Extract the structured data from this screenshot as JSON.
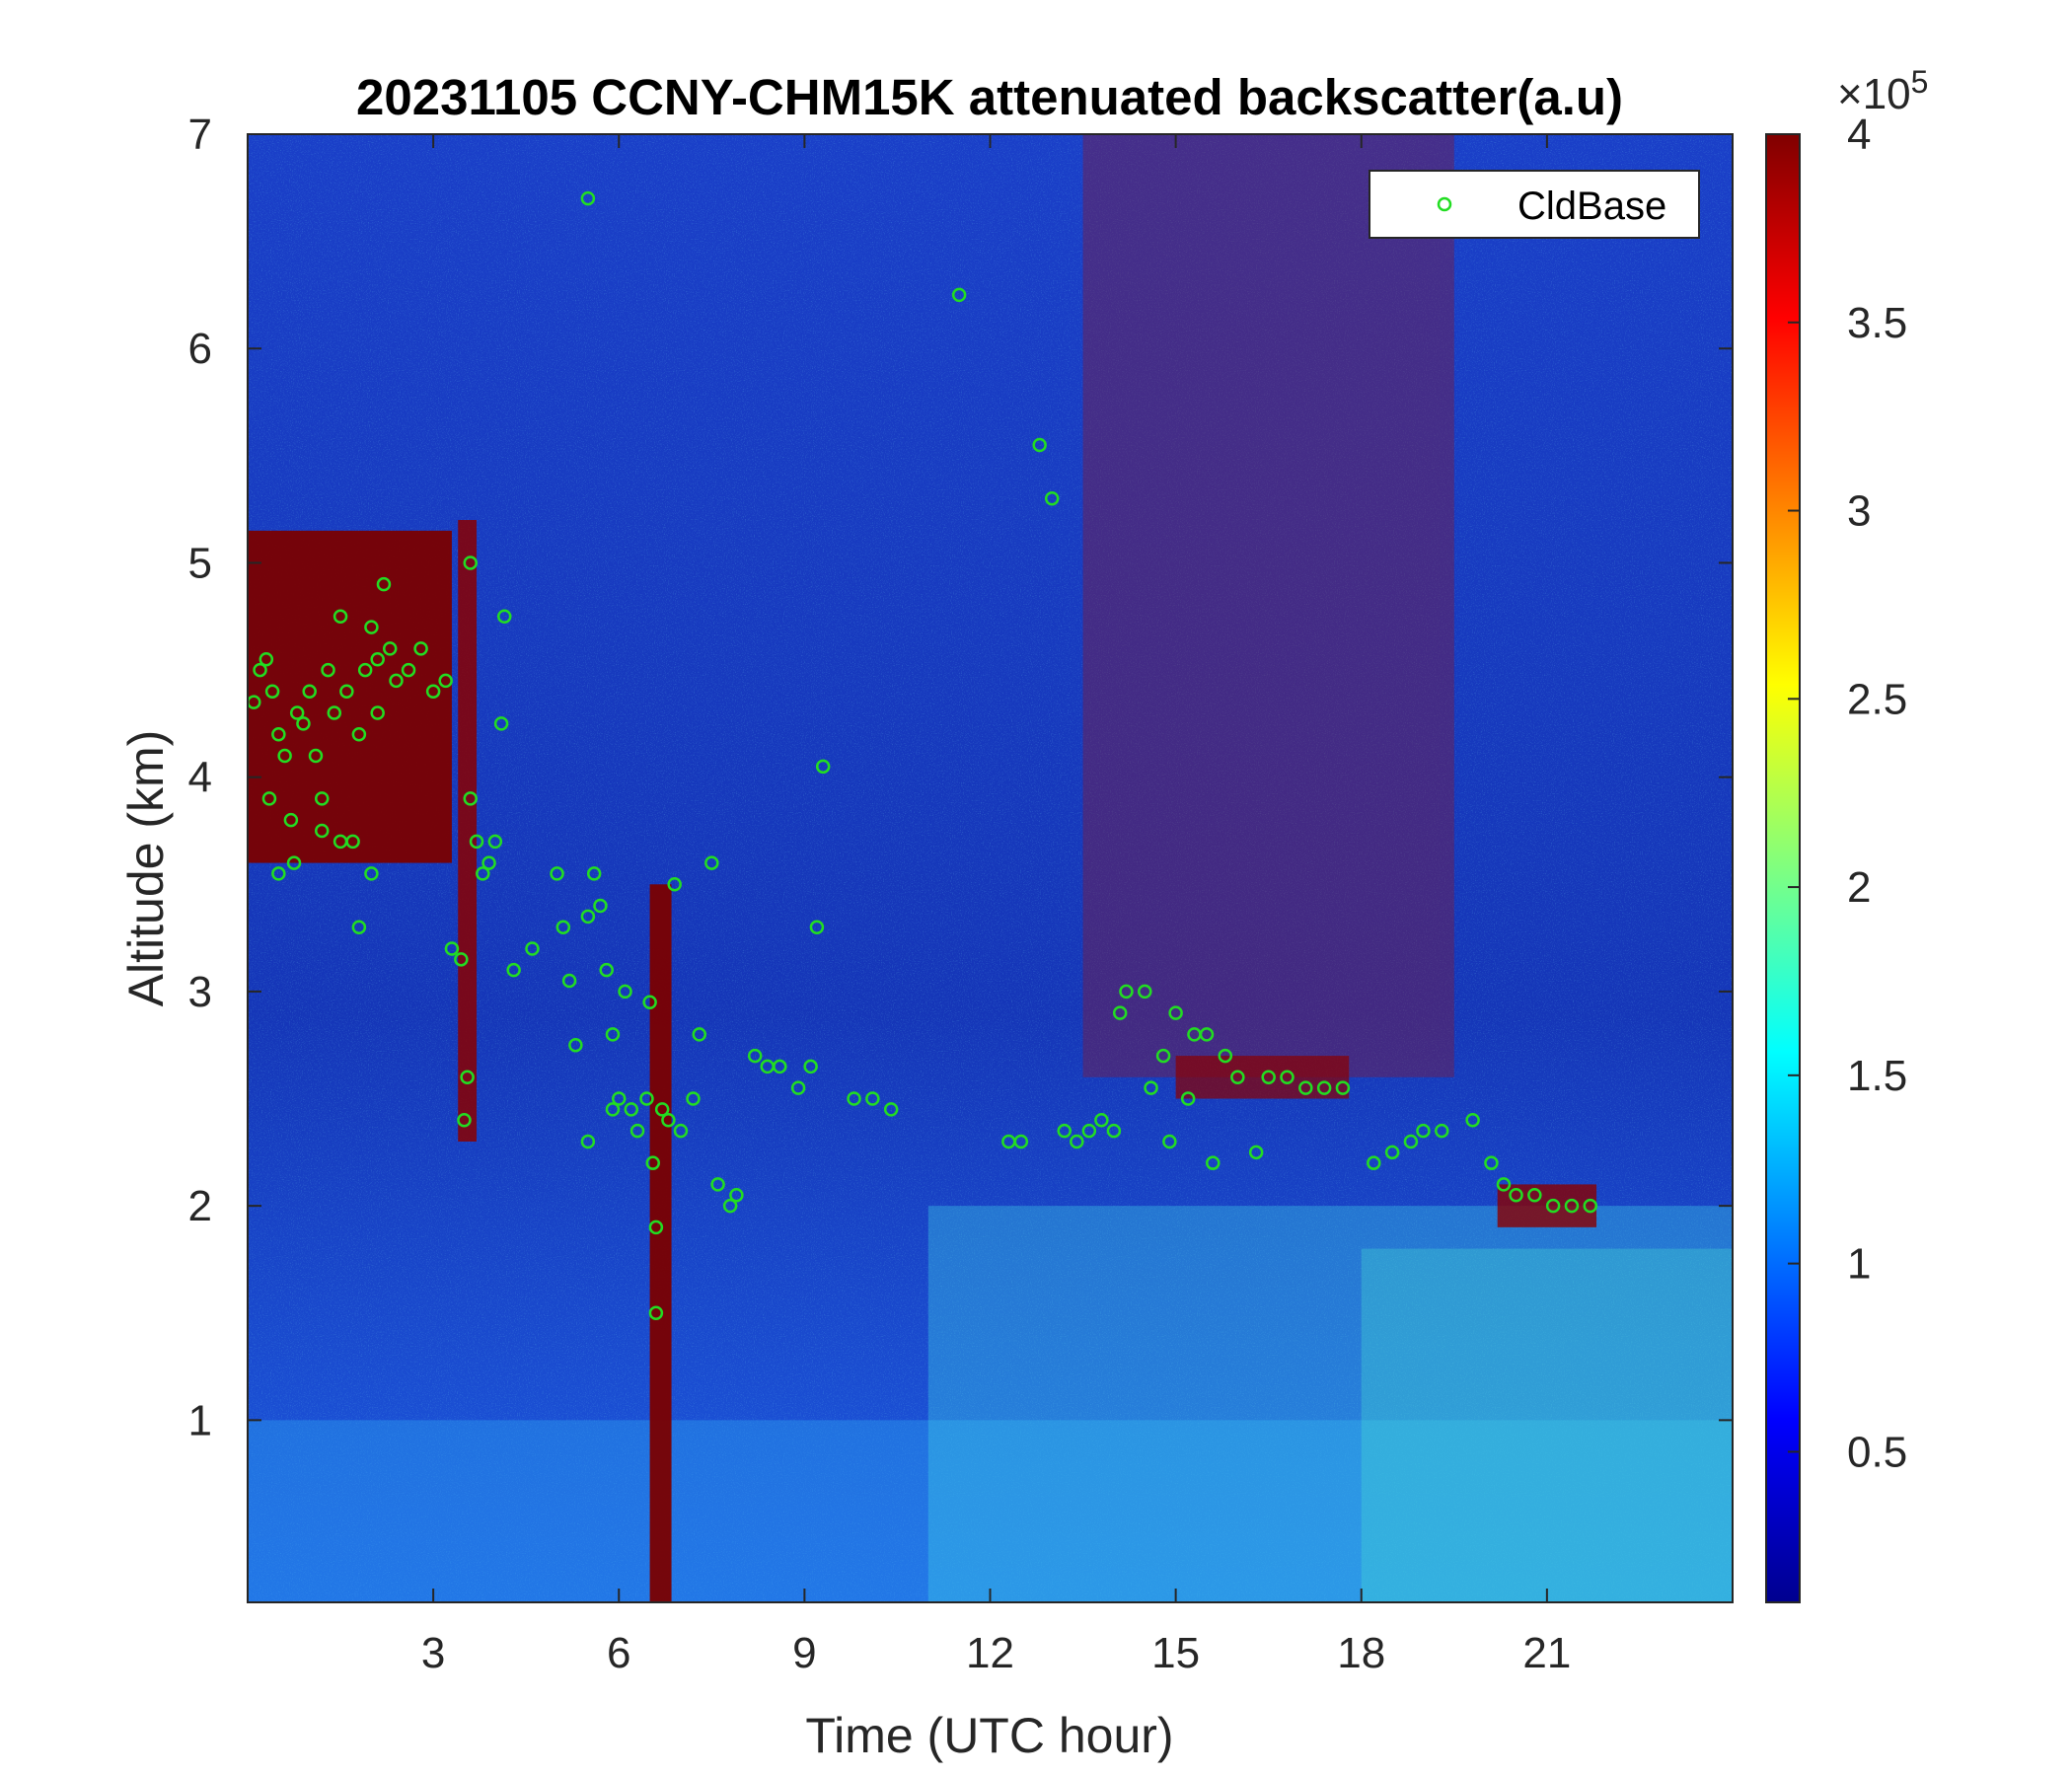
{
  "chart_data": {
    "type": "heatmap",
    "title": "20231105 CCNY-CHM15K attenuated backscatter(a.u)",
    "xlabel": "Time (UTC hour)",
    "ylabel": "Altitude (km)",
    "xlim": [
      0,
      24
    ],
    "ylim": [
      0.15,
      7
    ],
    "xticks": [
      3,
      6,
      9,
      12,
      15,
      18,
      21
    ],
    "yticks": [
      1,
      2,
      3,
      4,
      5,
      6,
      7
    ],
    "colorbar": {
      "range": [
        0.1,
        4
      ],
      "ticks": [
        0.5,
        1,
        1.5,
        2,
        2.5,
        3,
        3.5,
        4
      ],
      "multiplier_base": "×10",
      "multiplier_exp": "5",
      "colormap": "jet"
    },
    "legend": {
      "entries": [
        "CldBase"
      ],
      "location": "top-right"
    },
    "colors": {
      "marker": "#22dd22",
      "background": "#1d46d8"
    },
    "series": [
      {
        "name": "CldBase",
        "marker": "o",
        "points": [
          [
            0.1,
            4.35
          ],
          [
            0.2,
            4.5
          ],
          [
            0.3,
            4.55
          ],
          [
            0.35,
            3.9
          ],
          [
            0.4,
            4.4
          ],
          [
            0.5,
            4.2
          ],
          [
            0.6,
            4.1
          ],
          [
            0.7,
            3.8
          ],
          [
            0.75,
            3.6
          ],
          [
            0.8,
            4.3
          ],
          [
            0.9,
            4.25
          ],
          [
            1.0,
            4.4
          ],
          [
            1.1,
            4.1
          ],
          [
            1.2,
            3.9
          ],
          [
            1.3,
            4.5
          ],
          [
            1.4,
            4.3
          ],
          [
            1.5,
            3.7
          ],
          [
            1.6,
            4.4
          ],
          [
            1.7,
            3.7
          ],
          [
            1.8,
            4.2
          ],
          [
            1.9,
            4.5
          ],
          [
            2.0,
            4.7
          ],
          [
            2.1,
            4.55
          ],
          [
            2.2,
            4.9
          ],
          [
            2.3,
            4.6
          ],
          [
            2.4,
            4.45
          ],
          [
            2.6,
            4.5
          ],
          [
            2.8,
            4.6
          ],
          [
            3.0,
            4.4
          ],
          [
            3.2,
            4.45
          ],
          [
            0.5,
            3.55
          ],
          [
            1.2,
            3.75
          ],
          [
            1.8,
            3.3
          ],
          [
            2.0,
            3.55
          ],
          [
            1.5,
            4.75
          ],
          [
            2.1,
            4.3
          ],
          [
            3.3,
            3.2
          ],
          [
            3.45,
            3.15
          ],
          [
            3.5,
            2.4
          ],
          [
            3.55,
            2.6
          ],
          [
            3.6,
            3.9
          ],
          [
            3.7,
            3.7
          ],
          [
            3.8,
            3.55
          ],
          [
            3.9,
            3.6
          ],
          [
            4.0,
            3.7
          ],
          [
            4.1,
            4.25
          ],
          [
            4.15,
            4.75
          ],
          [
            3.6,
            5.0
          ],
          [
            4.3,
            3.1
          ],
          [
            4.6,
            3.2
          ],
          [
            5.0,
            3.55
          ],
          [
            5.1,
            3.3
          ],
          [
            5.2,
            3.05
          ],
          [
            5.3,
            2.75
          ],
          [
            5.5,
            3.35
          ],
          [
            5.6,
            3.55
          ],
          [
            5.7,
            3.4
          ],
          [
            5.8,
            3.1
          ],
          [
            5.9,
            2.8
          ],
          [
            5.5,
            2.3
          ],
          [
            6.1,
            3.0
          ],
          [
            5.9,
            2.45
          ],
          [
            6.0,
            2.5
          ],
          [
            6.2,
            2.45
          ],
          [
            6.3,
            2.35
          ],
          [
            6.45,
            2.5
          ],
          [
            6.5,
            2.95
          ],
          [
            6.55,
            2.2
          ],
          [
            6.6,
            1.9
          ],
          [
            6.6,
            1.5
          ],
          [
            6.7,
            2.45
          ],
          [
            6.8,
            2.4
          ],
          [
            6.9,
            3.5
          ],
          [
            7.0,
            2.35
          ],
          [
            7.2,
            2.5
          ],
          [
            7.3,
            2.8
          ],
          [
            7.5,
            3.6
          ],
          [
            7.6,
            2.1
          ],
          [
            7.8,
            2.0
          ],
          [
            7.9,
            2.05
          ],
          [
            8.2,
            2.7
          ],
          [
            8.4,
            2.65
          ],
          [
            8.6,
            2.65
          ],
          [
            8.9,
            2.55
          ],
          [
            9.1,
            2.65
          ],
          [
            9.2,
            3.3
          ],
          [
            9.3,
            4.05
          ],
          [
            9.8,
            2.5
          ],
          [
            10.1,
            2.5
          ],
          [
            10.4,
            2.45
          ],
          [
            12.3,
            2.3
          ],
          [
            12.5,
            2.3
          ],
          [
            12.8,
            5.55
          ],
          [
            13.0,
            5.3
          ],
          [
            13.2,
            2.35
          ],
          [
            13.4,
            2.3
          ],
          [
            13.6,
            2.35
          ],
          [
            13.8,
            2.4
          ],
          [
            14.0,
            2.35
          ],
          [
            14.1,
            2.9
          ],
          [
            14.2,
            3.0
          ],
          [
            14.5,
            3.0
          ],
          [
            14.6,
            2.55
          ],
          [
            14.8,
            2.7
          ],
          [
            14.9,
            2.3
          ],
          [
            15.0,
            2.9
          ],
          [
            15.2,
            2.5
          ],
          [
            15.3,
            2.8
          ],
          [
            15.5,
            2.8
          ],
          [
            15.6,
            2.2
          ],
          [
            15.8,
            2.7
          ],
          [
            16.0,
            2.6
          ],
          [
            16.3,
            2.25
          ],
          [
            16.5,
            2.6
          ],
          [
            16.8,
            2.6
          ],
          [
            17.1,
            2.55
          ],
          [
            17.4,
            2.55
          ],
          [
            17.7,
            2.55
          ],
          [
            18.2,
            2.2
          ],
          [
            18.5,
            2.25
          ],
          [
            18.8,
            2.3
          ],
          [
            19.0,
            2.35
          ],
          [
            19.3,
            2.35
          ],
          [
            19.8,
            2.4
          ],
          [
            20.1,
            2.2
          ],
          [
            20.3,
            2.1
          ],
          [
            20.5,
            2.05
          ],
          [
            20.8,
            2.05
          ],
          [
            21.1,
            2.0
          ],
          [
            21.4,
            2.0
          ],
          [
            21.7,
            2.0
          ],
          [
            11.5,
            6.25
          ],
          [
            5.5,
            6.7
          ]
        ]
      }
    ]
  }
}
